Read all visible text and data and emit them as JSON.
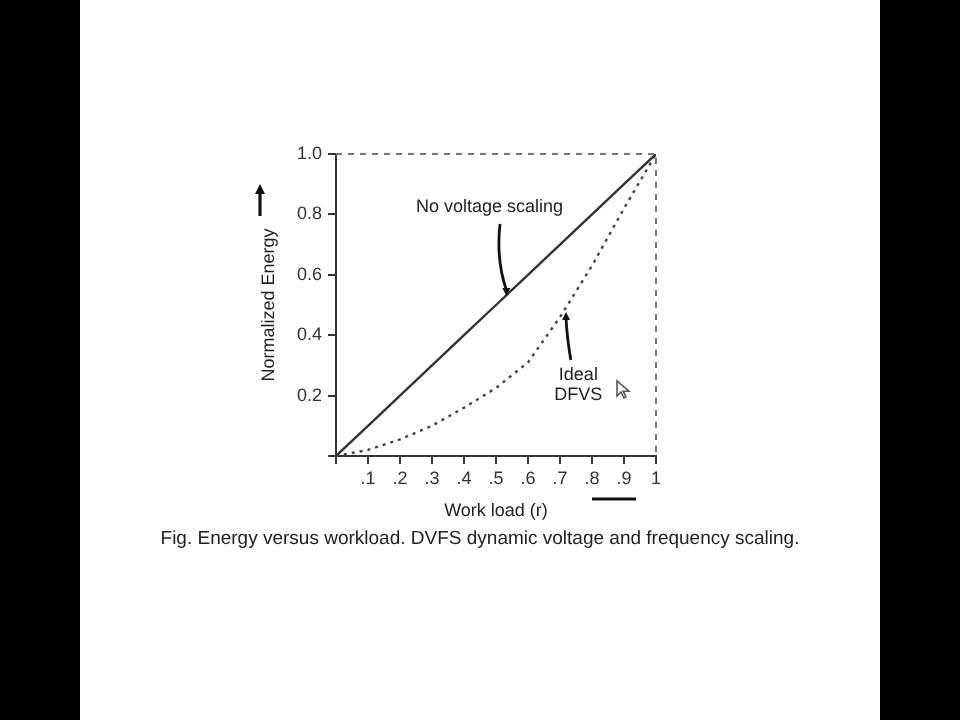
{
  "chart_data": {
    "type": "line",
    "xlabel": "Work load (r)",
    "ylabel": "Normalized Energy",
    "x": [
      0,
      0.1,
      0.2,
      0.3,
      0.4,
      0.5,
      0.6,
      0.7,
      0.8,
      0.9,
      1
    ],
    "series": [
      {
        "color": "#333333",
        "line_style": "solid",
        "values": [
          0,
          0.1,
          0.2,
          0.3,
          0.4,
          0.5,
          0.6,
          0.7,
          0.8,
          0.9,
          1
        ]
      },
      {
        "color": "#444444",
        "line_style": "dotted",
        "values": [
          0,
          0.02,
          0.055,
          0.1,
          0.16,
          0.225,
          0.31,
          0.46,
          0.63,
          0.82,
          1
        ]
      }
    ],
    "xlim": [
      0,
      1
    ],
    "ylim": [
      0,
      1
    ],
    "xticks": [
      {
        "value": 0,
        "label": null
      },
      {
        "value": 0.1,
        "label": ".1"
      },
      {
        "value": 0.2,
        "label": ".2"
      },
      {
        "value": 0.3,
        "label": ".3"
      },
      {
        "value": 0.4,
        "label": ".4"
      },
      {
        "value": 0.5,
        "label": ".5"
      },
      {
        "value": 0.6,
        "label": ".6"
      },
      {
        "value": 0.7,
        "label": ".7"
      },
      {
        "value": 0.8,
        "label": ".8"
      },
      {
        "value": 0.9,
        "label": ".9"
      },
      {
        "value": 1,
        "label": "1"
      }
    ],
    "yticks": [
      {
        "value": 0,
        "label": null
      },
      {
        "value": 0.2,
        "label": "0.2"
      },
      {
        "value": 0.4,
        "label": "0.4"
      },
      {
        "value": 0.6,
        "label": "0.6"
      },
      {
        "value": 0.8,
        "label": "0.8"
      },
      {
        "value": 1,
        "label": "1.0"
      }
    ],
    "annotations": [
      {
        "text": "No voltage scaling",
        "x": 0.53,
        "y": 0.53
      },
      {
        "text": "Ideal DFVS",
        "x": 0.72,
        "y": 0.48
      },
      "Fig.  Energy versus workload. DVFS dynamic voltage and frequency scaling."
    ],
    "grid": false,
    "legend": false,
    "marker": "none"
  }
}
